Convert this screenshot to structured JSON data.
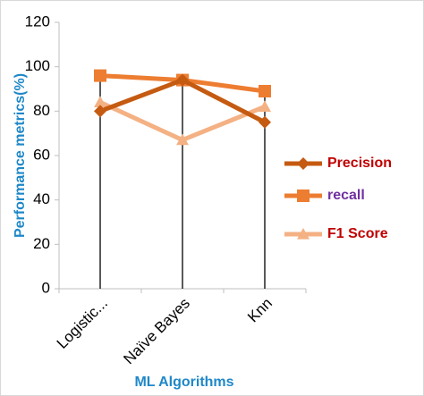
{
  "chart_data": {
    "type": "line",
    "categories": [
      "Logistic...",
      "Naïve Bayes",
      "Knn"
    ],
    "xlabel": "ML Algorithms",
    "ylabel": "Performance metrics(%)",
    "ylim": [
      0,
      120
    ],
    "yticks": [
      0,
      20,
      40,
      60,
      80,
      100,
      120
    ],
    "grid": false,
    "high_low_lines": true,
    "legend_position": "right",
    "series": [
      {
        "name": "Precision",
        "values": [
          80,
          94,
          75
        ],
        "color": "#c55a11",
        "marker": "diamond",
        "legend_text_color": "#c00000"
      },
      {
        "name": "recall",
        "values": [
          96,
          94,
          89
        ],
        "color": "#ed7d31",
        "marker": "square",
        "legend_text_color": "#7030a0"
      },
      {
        "name": "F1 Score",
        "values": [
          84,
          67,
          82
        ],
        "color": "#f4b183",
        "marker": "triangle",
        "legend_text_color": "#c00000"
      }
    ]
  }
}
